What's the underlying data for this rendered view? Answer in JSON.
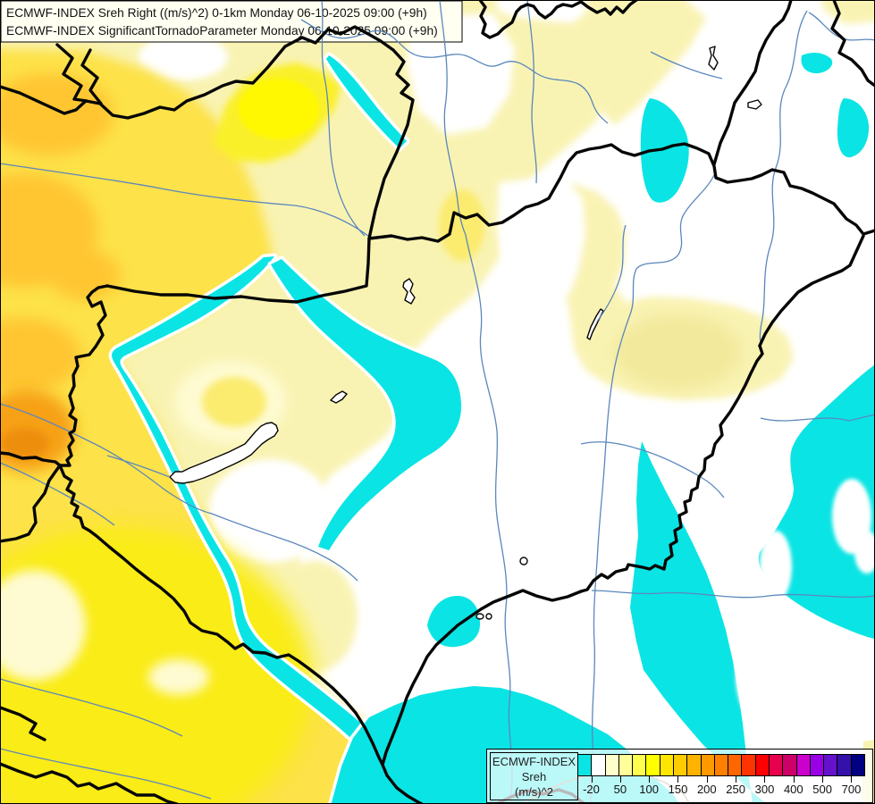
{
  "header": {
    "line1": "ECMWF-INDEX Sreh Right ((m/s)^2) 0-1km Monday 06-10-2025 09:00 (+9h)",
    "line2": "ECMWF-INDEX SignificantTornadoParameter Monday 06-10-2025 09:00 (+9h)"
  },
  "legend": {
    "title_line1": "ECMWF-INDEX",
    "title_line2": "Sreh",
    "title_line3": "(m/s)^2",
    "tick_labels": [
      "-20",
      "50",
      "100",
      "150",
      "200",
      "250",
      "300",
      "400",
      "500",
      "700"
    ],
    "swatch_colors": [
      "#0be4e4",
      "#ffffff",
      "#ffffcc",
      "#ffff99",
      "#ffff4d",
      "#ffff00",
      "#ffe600",
      "#ffcc00",
      "#ffb300",
      "#ff9900",
      "#ff8000",
      "#ff6600",
      "#ff3300",
      "#ff0000",
      "#e6004d",
      "#cc0066",
      "#cc00cc",
      "#9900e6",
      "#6611cc",
      "#3311aa",
      "#000080"
    ]
  },
  "map": {
    "colors": {
      "white": "#ffffff",
      "pale_yellow": "#f9f3b3",
      "pale_deep": "#f3e99c",
      "pale_cream": "#fefbd2",
      "yellow": "#fde24a",
      "yellow_vivid": "#faec12",
      "yellow_soft": "#fbeb6e",
      "yellow_bright": "#faf02a",
      "yellow_core": "#fff800",
      "gold": "#ffc630",
      "orange": "#f7a119",
      "deep_orange": "#ee8e10",
      "cyan": "#0be4e4",
      "river": "#5b87bd",
      "river_tan": "#a98f6f",
      "border": "#060606",
      "title_bg": "#fffff2"
    }
  }
}
